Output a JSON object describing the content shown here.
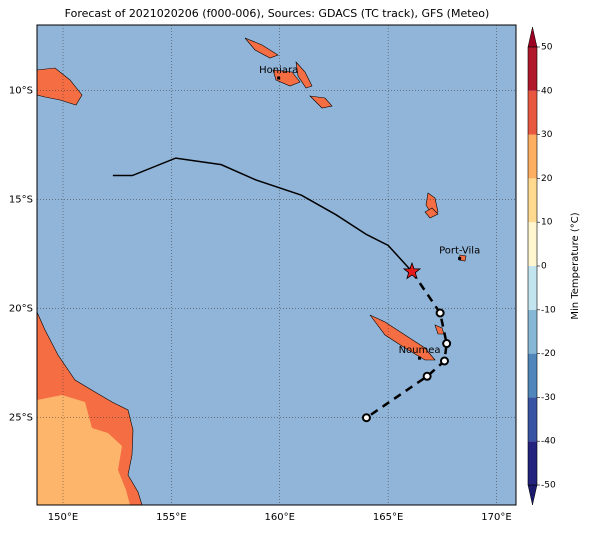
{
  "chart_data": {
    "type": "map",
    "title": "Forecast of 2021020206 (f000-006), Sources: GDACS (TC track), GFS (Meteo)",
    "xlim": [
      148.8,
      170.9
    ],
    "ylim": [
      -29,
      -7
    ],
    "xticks": [
      {
        "value": 150,
        "label": "150°E"
      },
      {
        "value": 155,
        "label": "155°E"
      },
      {
        "value": 160,
        "label": "160°E"
      },
      {
        "value": 165,
        "label": "165°E"
      },
      {
        "value": 170,
        "label": "170°E"
      }
    ],
    "yticks": [
      {
        "value": -10,
        "label": "10°S"
      },
      {
        "value": -15,
        "label": "15°S"
      },
      {
        "value": -20,
        "label": "20°S"
      },
      {
        "value": -25,
        "label": "25°S"
      }
    ],
    "grid": true,
    "cities": [
      {
        "name": "Honiara",
        "lon": 159.95,
        "lat": -9.43
      },
      {
        "name": "Port-Vila",
        "lon": 168.3,
        "lat": -17.7
      },
      {
        "name": "Noumea",
        "lon": 166.45,
        "lat": -22.27
      }
    ],
    "track_past": {
      "lon": [
        152.3,
        153.2,
        155.2,
        157.3,
        158.9,
        161,
        162.6,
        164,
        165,
        166.1
      ],
      "lat": [
        -13.9,
        -13.9,
        -13.1,
        -13.4,
        -14.1,
        -14.8,
        -15.7,
        -16.6,
        -17.1,
        -18.3
      ],
      "color": "#000000"
    },
    "track_forecast": {
      "lon": [
        166.1,
        167.4,
        167.7,
        167.6,
        166.8,
        164
      ],
      "lat": [
        -18.3,
        -20.2,
        -21.6,
        -22.4,
        -23.1,
        -25
      ],
      "color": "#000000"
    },
    "current_position": {
      "lon": 166.1,
      "lat": -18.3,
      "color": "#e41a1c"
    },
    "colorbar": {
      "label": "Min Temperature (°C)",
      "levels": [
        -50,
        -40,
        -30,
        -20,
        -10,
        0,
        10,
        20,
        30,
        40,
        50
      ],
      "colors": [
        "#23237f",
        "#3953a4",
        "#4f86bb",
        "#86b8d6",
        "#c2e4ef",
        "#fff6cf",
        "#fed98e",
        "#fdae61",
        "#e7583e",
        "#b2182b"
      ],
      "ticks": [
        -50,
        -40,
        -30,
        -20,
        -10,
        0,
        10,
        20,
        30,
        40,
        50
      ]
    }
  }
}
